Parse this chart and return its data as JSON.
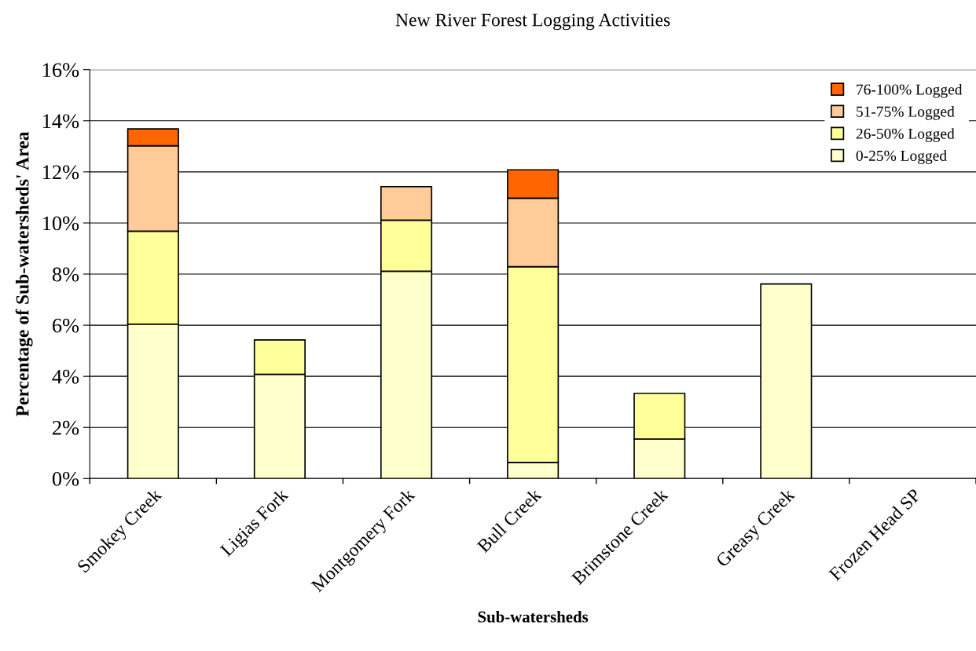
{
  "chart_data": {
    "type": "bar",
    "stacked": true,
    "title": "New River Forest Logging Activities",
    "xlabel": "Sub-watersheds",
    "ylabel": "Percentage of Sub-watersheds' Area",
    "categories": [
      "Smokey Creek",
      "Ligias Fork",
      "Montgomery Fork",
      "Bull Creek",
      "Brimstone Creek",
      "Greasy Creek",
      "Frozen Head SP"
    ],
    "series": [
      {
        "name": "0-25% Logged",
        "color": "#ffffcc",
        "values": [
          6.04,
          4.08,
          8.11,
          0.63,
          1.54,
          7.61,
          null
        ]
      },
      {
        "name": "26-50% Logged",
        "color": "#ffff99",
        "values": [
          3.64,
          1.34,
          2.0,
          7.66,
          1.79,
          null,
          null
        ]
      },
      {
        "name": "51-75% Logged",
        "color": "#ffcc99",
        "values": [
          3.34,
          null,
          1.31,
          2.68,
          null,
          null,
          null
        ]
      },
      {
        "name": "76-100% Logged",
        "color": "#ff6600",
        "values": [
          0.66,
          null,
          null,
          1.11,
          null,
          null,
          null
        ]
      }
    ],
    "ylim": [
      0,
      16
    ],
    "yticks": [
      {
        "value": 0,
        "label": "0%"
      },
      {
        "value": 2,
        "label": "2%"
      },
      {
        "value": 4,
        "label": "4%"
      },
      {
        "value": 6,
        "label": "6%"
      },
      {
        "value": 8,
        "label": "8%"
      },
      {
        "value": 10,
        "label": "10%"
      },
      {
        "value": 12,
        "label": "12%"
      },
      {
        "value": 14,
        "label": "14%"
      },
      {
        "value": 16,
        "label": "16%"
      }
    ],
    "grid": "y",
    "legend": "top right"
  }
}
